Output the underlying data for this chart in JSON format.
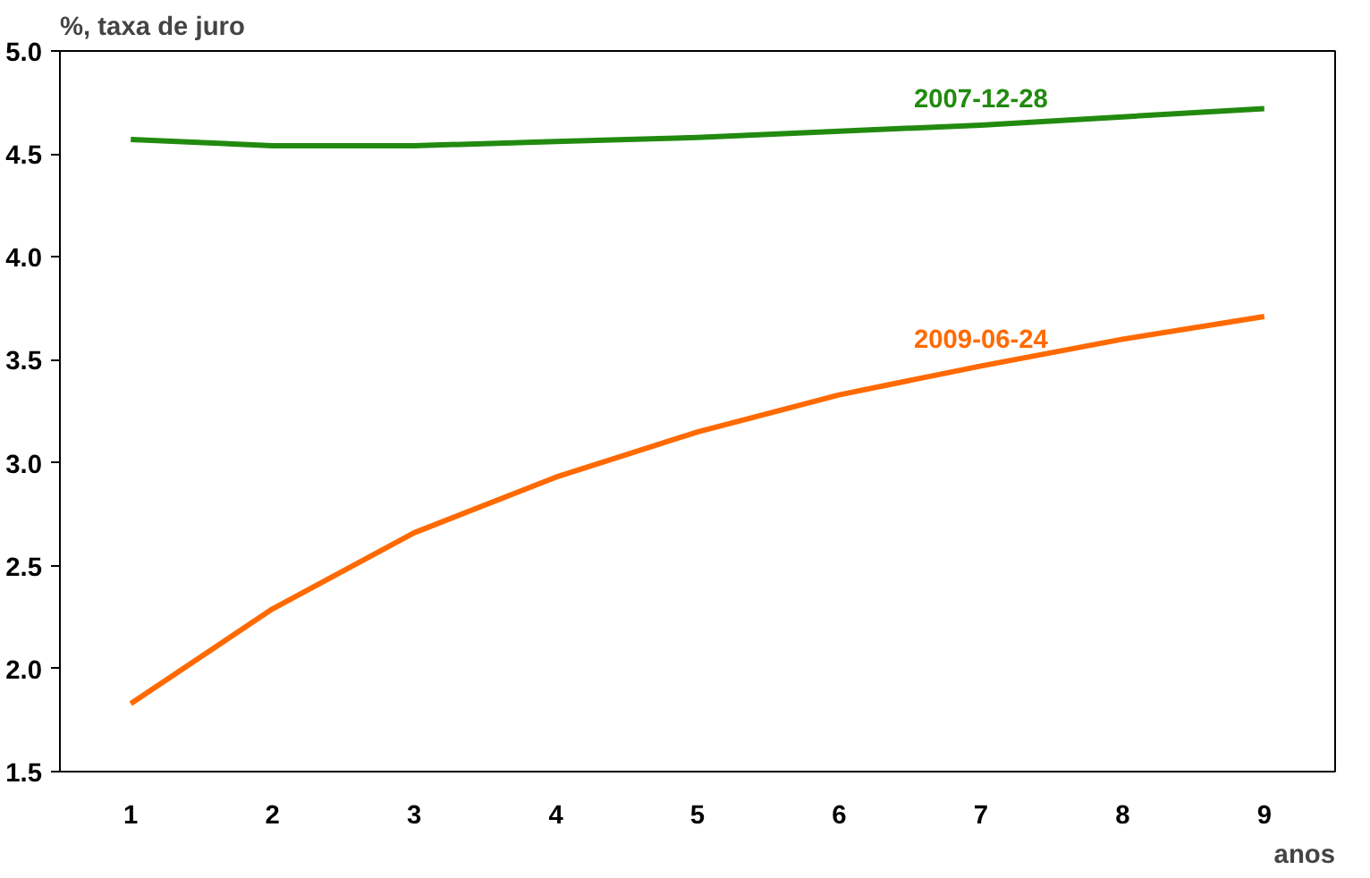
{
  "chart_data": {
    "type": "line",
    "ylabel": "%, taxa de juro",
    "xlabel": "anos",
    "x": [
      1,
      2,
      3,
      4,
      5,
      6,
      7,
      8,
      9
    ],
    "series": [
      {
        "name": "2007-12-28",
        "color": "#218a0f",
        "values": [
          4.57,
          4.54,
          4.54,
          4.56,
          4.58,
          4.61,
          4.64,
          4.68,
          4.72
        ]
      },
      {
        "name": "2009-06-24",
        "color": "#ff6a00",
        "values": [
          1.83,
          2.29,
          2.66,
          2.93,
          3.15,
          3.33,
          3.47,
          3.6,
          3.71
        ]
      }
    ],
    "xlim": [
      0.5,
      9.5
    ],
    "xticks": [
      1,
      2,
      3,
      4,
      5,
      6,
      7,
      8,
      9
    ],
    "ylim": [
      1.5,
      5.0
    ],
    "yticks": [
      {
        "value": 1.5,
        "label": "1.5"
      },
      {
        "value": 2.0,
        "label": "2.0"
      },
      {
        "value": 2.5,
        "label": "2.5"
      },
      {
        "value": 3.0,
        "label": "3.0"
      },
      {
        "value": 3.5,
        "label": "3.5"
      },
      {
        "value": 4.0,
        "label": "4.0"
      },
      {
        "value": 4.5,
        "label": "4.5"
      },
      {
        "value": 5.0,
        "label": "5.0"
      }
    ],
    "grid": false,
    "legend": false,
    "marker": "none",
    "line_style": "solid"
  }
}
